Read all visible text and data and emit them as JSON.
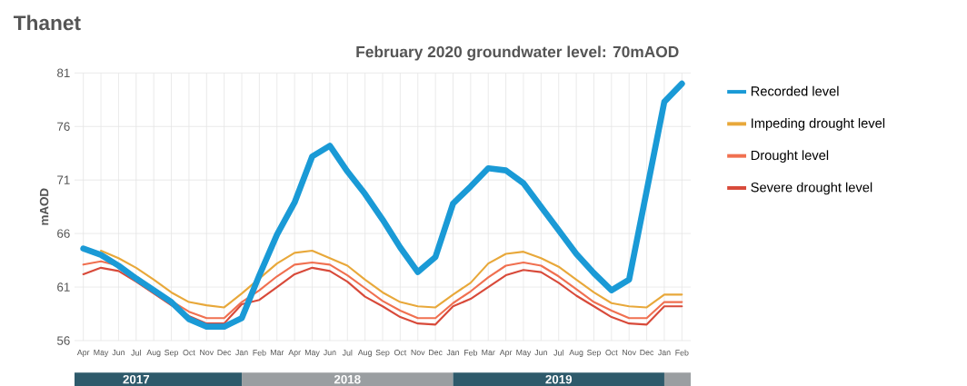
{
  "chart_data": {
    "type": "line",
    "title": "Thanet",
    "subtitle": "February 2020 groundwater level: **70**mAOD",
    "ylabel": "mAOD",
    "categories": [
      "Apr",
      "May",
      "Jun",
      "Jul",
      "Aug",
      "Sep",
      "Oct",
      "Nov",
      "Dec",
      "Jan",
      "Feb",
      "Mar",
      "Apr",
      "May",
      "Jun",
      "Jul",
      "Aug",
      "Sep",
      "Oct",
      "Nov",
      "Dec",
      "Jan",
      "Feb",
      "Mar",
      "Apr",
      "May",
      "Jun",
      "Jul",
      "Aug",
      "Sep",
      "Oct",
      "Nov",
      "Dec",
      "Jan",
      "Feb"
    ],
    "series": [
      {
        "name": "Recorded level",
        "color": "#1a9ad6",
        "values": [
          64.6,
          64.0,
          63.0,
          61.8,
          60.7,
          59.6,
          58.0,
          57.3,
          57.3,
          58.1,
          62.1,
          65.9,
          68.9,
          73.2,
          74.2,
          71.8,
          69.7,
          67.3,
          64.7,
          62.4,
          63.8,
          68.8,
          70.4,
          72.1,
          71.9,
          70.7,
          68.5,
          66.3,
          64.1,
          62.3,
          60.7,
          61.7,
          70.0,
          78.3,
          80.0
        ]
      },
      {
        "name": "Impeding drought level",
        "color": "#e8a83a",
        "values": [
          null,
          64.4,
          63.7,
          62.8,
          61.7,
          60.5,
          59.6,
          59.3,
          59.1,
          60.4,
          61.8,
          63.2,
          64.2,
          64.4,
          63.7,
          63.0,
          61.7,
          60.5,
          59.6,
          59.2,
          59.1,
          60.3,
          61.4,
          63.2,
          64.1,
          64.3,
          63.7,
          62.9,
          61.7,
          60.5,
          59.5,
          59.2,
          59.1,
          60.3,
          60.3
        ]
      },
      {
        "name": "Drought level",
        "color": "#f07050",
        "values": [
          63.1,
          63.4,
          63.0,
          62.0,
          60.8,
          59.7,
          58.7,
          58.1,
          58.1,
          59.6,
          60.7,
          62.0,
          63.1,
          63.3,
          63.1,
          62.1,
          60.9,
          59.7,
          58.8,
          58.1,
          58.1,
          59.5,
          60.6,
          61.9,
          63.0,
          63.3,
          63.0,
          62.0,
          60.8,
          59.6,
          58.8,
          58.1,
          58.1,
          59.6,
          59.6
        ]
      },
      {
        "name": "Severe drought level",
        "color": "#d84a3a",
        "values": [
          62.2,
          62.8,
          62.5,
          61.5,
          60.4,
          59.3,
          58.3,
          57.6,
          57.6,
          59.4,
          59.8,
          61.0,
          62.2,
          62.8,
          62.5,
          61.5,
          60.1,
          59.2,
          58.2,
          57.6,
          57.5,
          59.2,
          59.9,
          61.0,
          62.1,
          62.6,
          62.4,
          61.4,
          60.2,
          59.2,
          58.2,
          57.6,
          57.5,
          59.2,
          59.2
        ]
      }
    ],
    "ylim": [
      56,
      81
    ],
    "yticks": [
      56,
      61,
      66,
      71,
      76,
      81
    ],
    "grid": true,
    "legend": "right",
    "x2lim": [
      2017.2083,
      2020.125
    ],
    "x2ticks": [
      {
        "value": 2017.5,
        "label": "2017"
      },
      {
        "value": 2018.5,
        "label": "2018"
      },
      {
        "value": 2019.5,
        "label": "2019"
      }
    ]
  }
}
